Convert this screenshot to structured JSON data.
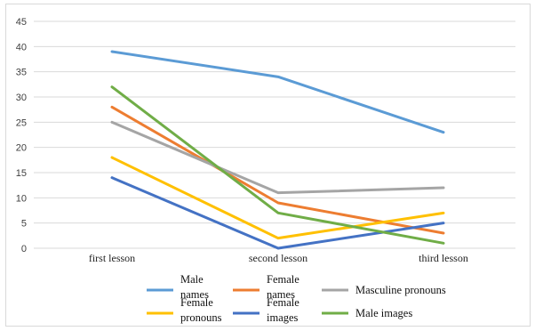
{
  "chart_data": {
    "type": "line",
    "categories": [
      "first lesson",
      "second lesson",
      "third lesson"
    ],
    "ylim": [
      0,
      45
    ],
    "yticks": [
      0,
      5,
      10,
      15,
      20,
      25,
      30,
      35,
      40,
      45
    ],
    "grid": true,
    "legend_position": "bottom",
    "series": [
      {
        "name": "Male names",
        "legend_lines": [
          "Male",
          "names"
        ],
        "color": "#5B9BD5",
        "values": [
          39,
          34,
          23
        ]
      },
      {
        "name": "Female names",
        "legend_lines": [
          "Female",
          "names"
        ],
        "color": "#ED7D31",
        "values": [
          28,
          9,
          3
        ]
      },
      {
        "name": "Masculine pronouns",
        "legend_lines": [
          "Masculine pronouns"
        ],
        "color": "#A5A5A5",
        "values": [
          25,
          11,
          12
        ]
      },
      {
        "name": "Female pronouns",
        "legend_lines": [
          "Female",
          "pronouns"
        ],
        "color": "#FFC000",
        "values": [
          18,
          2,
          7
        ]
      },
      {
        "name": "Female images",
        "legend_lines": [
          "Female",
          "images"
        ],
        "color": "#4472C4",
        "values": [
          14,
          0,
          5
        ]
      },
      {
        "name": "Male images",
        "legend_lines": [
          "Male images"
        ],
        "color": "#70AD47",
        "values": [
          32,
          7,
          1
        ]
      }
    ]
  }
}
